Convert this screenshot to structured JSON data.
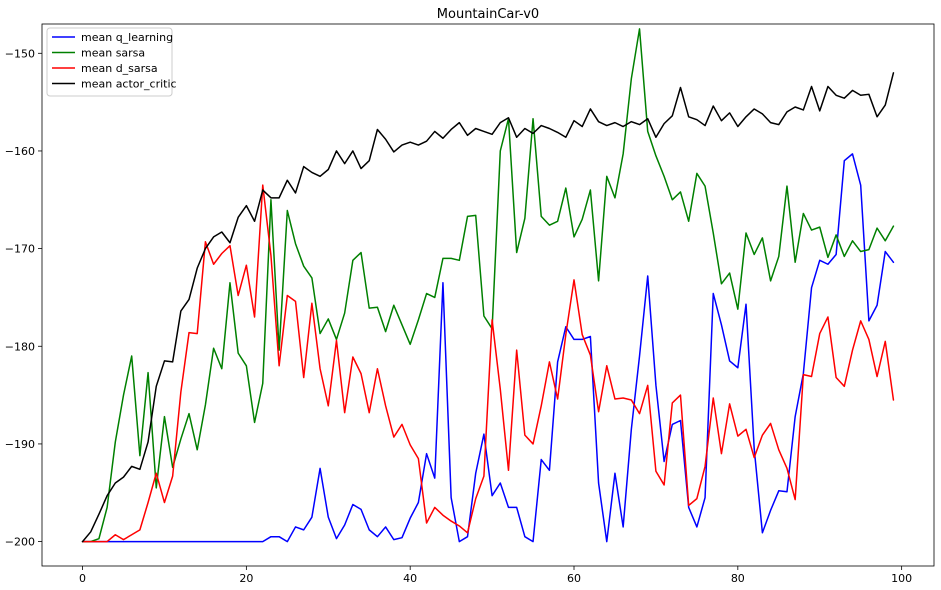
{
  "chart_data": {
    "type": "line",
    "title": "MountainCar-v0",
    "xlabel": "",
    "ylabel": "",
    "xlim": [
      -4.95,
      103.95
    ],
    "ylim": [
      -202.5,
      -147.0
    ],
    "xticks": [
      0,
      20,
      40,
      60,
      80,
      100
    ],
    "yticks": [
      -200,
      -190,
      -180,
      -170,
      -160,
      -150
    ],
    "xtick_labels": [
      "0",
      "20",
      "40",
      "60",
      "80",
      "100"
    ],
    "ytick_labels": [
      "−200",
      "−190",
      "−180",
      "−170",
      "−160",
      "−150"
    ],
    "grid": false,
    "legend_position": "top-left",
    "x": [
      0,
      1,
      2,
      3,
      4,
      5,
      6,
      7,
      8,
      9,
      10,
      11,
      12,
      13,
      14,
      15,
      16,
      17,
      18,
      19,
      20,
      21,
      22,
      23,
      24,
      25,
      26,
      27,
      28,
      29,
      30,
      31,
      32,
      33,
      34,
      35,
      36,
      37,
      38,
      39,
      40,
      41,
      42,
      43,
      44,
      45,
      46,
      47,
      48,
      49,
      50,
      51,
      52,
      53,
      54,
      55,
      56,
      57,
      58,
      59,
      60,
      61,
      62,
      63,
      64,
      65,
      66,
      67,
      68,
      69,
      70,
      71,
      72,
      73,
      74,
      75,
      76,
      77,
      78,
      79,
      80,
      81,
      82,
      83,
      84,
      85,
      86,
      87,
      88,
      89,
      90,
      91,
      92,
      93,
      94,
      95,
      96,
      97,
      98,
      99
    ],
    "series": [
      {
        "name": "mean q_learning",
        "color": "#0000ff",
        "values": [
          -200,
          -200,
          -200,
          -200,
          -200,
          -200,
          -200,
          -200,
          -200,
          -200,
          -200,
          -200,
          -200,
          -200,
          -200,
          -200,
          -200,
          -200,
          -200,
          -200,
          -200,
          -200,
          -200,
          -199.5,
          -199.5,
          -200,
          -198.5,
          -198.8,
          -197.5,
          -192.5,
          -197.5,
          -199.7,
          -198.3,
          -196.2,
          -196.7,
          -198.8,
          -199.5,
          -198.5,
          -199.8,
          -199.6,
          -197.6,
          -196,
          -191,
          -193.5,
          -173.5,
          -195.5,
          -200,
          -199.5,
          -193,
          -189,
          -195.3,
          -194,
          -196.5,
          -196.5,
          -199.5,
          -200,
          -191.6,
          -192.7,
          -181.6,
          -178,
          -179.3,
          -179.3,
          -179,
          -194,
          -200,
          -193,
          -198.5,
          -188.5,
          -181,
          -172.8,
          -184,
          -191.8,
          -188,
          -187.6,
          -196.5,
          -198.5,
          -195.5,
          -174.6,
          -177.8,
          -181.5,
          -182.2,
          -175.7,
          -190.5,
          -199.1,
          -196.8,
          -194.8,
          -194.9,
          -187.2,
          -182.8,
          -174,
          -171.2,
          -171.6,
          -170.6,
          -161,
          -160.3,
          -163.5,
          -177.4,
          -175.8,
          -170.3,
          -171.4
        ]
      },
      {
        "name": "mean sarsa",
        "color": "#008000",
        "values": [
          -200,
          -200,
          -199.7,
          -196.5,
          -189.8,
          -185,
          -181,
          -191.2,
          -182.7,
          -194.5,
          -187.2,
          -192.4,
          -189.5,
          -186.9,
          -190.6,
          -186,
          -180.2,
          -182.3,
          -173.5,
          -180.7,
          -182,
          -187.8,
          -183.8,
          -165,
          -180.4,
          -166.1,
          -169.5,
          -171.8,
          -173,
          -178.7,
          -177.2,
          -179.3,
          -176.6,
          -171.2,
          -170.4,
          -176.1,
          -176,
          -178.5,
          -175.8,
          -177.8,
          -179.8,
          -177.3,
          -174.6,
          -175,
          -171,
          -171,
          -171.2,
          -166.7,
          -166.6,
          -176.9,
          -178.2,
          -160,
          -156.7,
          -170.4,
          -166.9,
          -156.7,
          -166.7,
          -167.6,
          -167.2,
          -163.8,
          -168.8,
          -167,
          -164,
          -173.3,
          -162.6,
          -164.8,
          -160.3,
          -152.6,
          -147.5,
          -158,
          -160.5,
          -162.6,
          -165,
          -164.2,
          -167.2,
          -162.3,
          -163.6,
          -168.4,
          -173.6,
          -172.5,
          -176.2,
          -168.4,
          -170.6,
          -168.9,
          -173.3,
          -170.8,
          -163.6,
          -171.4,
          -166.4,
          -168.1,
          -167.8,
          -170.9,
          -168.6,
          -170.8,
          -169.2,
          -170.3,
          -170.1,
          -167.9,
          -169.2,
          -167.7
        ]
      },
      {
        "name": "mean d_sarsa",
        "color": "#ff0000",
        "values": [
          -200,
          -200,
          -200,
          -200,
          -199.3,
          -199.8,
          -199.3,
          -198.8,
          -196,
          -193,
          -196,
          -193.3,
          -184.7,
          -178.6,
          -178.7,
          -169.3,
          -171.6,
          -170.5,
          -169.7,
          -174.8,
          -171.7,
          -177,
          -163.5,
          -170.7,
          -182,
          -174.8,
          -175.4,
          -183.2,
          -175.6,
          -182.3,
          -186.1,
          -179.4,
          -186.8,
          -181.1,
          -182.8,
          -186.8,
          -182.3,
          -186.1,
          -189.3,
          -188,
          -190.1,
          -191.5,
          -198.1,
          -196.5,
          -197.3,
          -197.9,
          -198.4,
          -199.1,
          -195.6,
          -193.3,
          -177.3,
          -184.4,
          -192.7,
          -180.4,
          -189.1,
          -190,
          -186.1,
          -181.6,
          -185.4,
          -178.8,
          -173.2,
          -178.8,
          -180.9,
          -186.7,
          -182,
          -185.4,
          -185.3,
          -185.5,
          -186.9,
          -184,
          -192.8,
          -194.2,
          -185.8,
          -185,
          -196.3,
          -195.6,
          -192.3,
          -185.3,
          -191,
          -185.9,
          -189.2,
          -188.5,
          -191.4,
          -189.1,
          -187.9,
          -190.6,
          -192.5,
          -195.7,
          -182.9,
          -183.1,
          -178.7,
          -177,
          -183.2,
          -184.1,
          -180.4,
          -177.4,
          -179.3,
          -183.1,
          -179.5,
          -185.5
        ]
      },
      {
        "name": "mean actor_critic",
        "color": "#000000",
        "values": [
          -200,
          -199,
          -197.2,
          -195.3,
          -194,
          -193.4,
          -192.3,
          -192.6,
          -189.8,
          -184.1,
          -181.5,
          -181.6,
          -176.4,
          -175.2,
          -172,
          -170,
          -168.8,
          -168.3,
          -169.4,
          -166.8,
          -165.6,
          -167.2,
          -164,
          -164.8,
          -164.8,
          -163,
          -164.3,
          -161.6,
          -162.2,
          -162.6,
          -161.9,
          -160,
          -161.3,
          -160,
          -161.8,
          -161,
          -157.8,
          -158.8,
          -160.1,
          -159.4,
          -159.1,
          -159.4,
          -159,
          -158,
          -158.7,
          -157.8,
          -157.1,
          -158.4,
          -157.7,
          -158,
          -158.3,
          -157.1,
          -156.6,
          -158.6,
          -157.7,
          -158.2,
          -157.4,
          -157.7,
          -158.1,
          -158.6,
          -156.9,
          -157.5,
          -155.7,
          -157,
          -157.4,
          -157.1,
          -157.5,
          -157,
          -157.3,
          -156.7,
          -158.6,
          -157.2,
          -156.4,
          -153.5,
          -156.5,
          -156.8,
          -157.4,
          -155.4,
          -156.9,
          -156.1,
          -157.5,
          -156.5,
          -155.7,
          -156.2,
          -157.1,
          -157.3,
          -156,
          -155.5,
          -155.8,
          -153.4,
          -155.9,
          -153.4,
          -154.3,
          -154.6,
          -153.8,
          -154.3,
          -154.2,
          -156.5,
          -155.3,
          -152
        ]
      }
    ]
  }
}
